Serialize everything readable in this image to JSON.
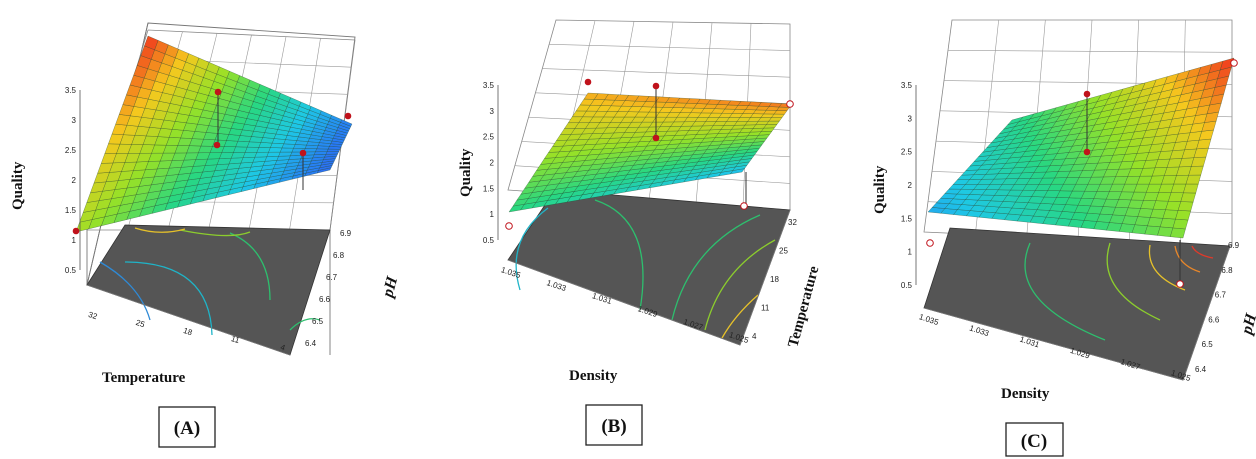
{
  "chart_data": [
    {
      "type": "surface3d",
      "panel_label": "(A)",
      "zlabel": "Quality",
      "xlabel": "Temperature",
      "ylabel": "pH",
      "zticks": [
        "0.5",
        "1",
        "1.5",
        "2",
        "2.5",
        "3",
        "3.5"
      ],
      "zlim": [
        0.5,
        3.5
      ],
      "xticks": [
        "32",
        "25",
        "18",
        "11",
        "4"
      ],
      "yticks": [
        "6.4",
        "6.5",
        "6.6",
        "6.7",
        "6.8",
        "6.9"
      ],
      "surface_corners": {
        "low_x_low_y": 2.6,
        "high_x_low_y": 0.9,
        "low_x_high_y": 3.5,
        "high_x_high_y": 1.0
      },
      "contours": [
        "#2f8ad6",
        "#1fb4c8",
        "#2dbf6e",
        "#8ccd2d",
        "#e6c12a"
      ],
      "design_points": [
        {
          "x": 4,
          "y": 6.9,
          "z": 3.0,
          "above_surface": true
        },
        {
          "x": 18,
          "y": 6.65,
          "z": 3.0,
          "above_surface": true
        },
        {
          "x": 18,
          "y": 6.65,
          "z": 2.0,
          "above_surface": false
        },
        {
          "x": 4,
          "y": 6.6,
          "z": 2.0,
          "above_surface": false
        },
        {
          "x": 32,
          "y": 6.4,
          "z": 1.0,
          "above_surface": false
        }
      ]
    },
    {
      "type": "surface3d",
      "panel_label": "(B)",
      "zlabel": "Quality",
      "xlabel": "Density",
      "ylabel": "Temperature",
      "zticks": [
        "0.5",
        "1",
        "1.5",
        "2",
        "2.5",
        "3",
        "3.5"
      ],
      "zlim": [
        0.5,
        3.5
      ],
      "xticks": [
        "1.035",
        "1.033",
        "1.031",
        "1.029",
        "1.027",
        "1.025"
      ],
      "yticks": [
        "4",
        "11",
        "18",
        "25",
        "32"
      ],
      "surface_corners": {
        "low_x_low_y": 2.0,
        "high_x_low_y": 1.4,
        "low_x_high_y": 3.1,
        "high_x_high_y": 3.3
      },
      "contours": [
        "#1fb4c8",
        "#2dbf6e",
        "#8ccd2d",
        "#e6c12a"
      ],
      "design_points": [
        {
          "x": 1.035,
          "y": 32,
          "z": 3.0,
          "above_surface": true
        },
        {
          "x": 1.029,
          "y": 18,
          "z": 3.0,
          "above_surface": true
        },
        {
          "x": 1.029,
          "y": 18,
          "z": 2.0,
          "above_surface": false
        },
        {
          "x": 1.025,
          "y": 32,
          "z": 3.0,
          "above_surface": false
        },
        {
          "x": 1.025,
          "y": 4,
          "z": 1.0,
          "above_surface": false
        },
        {
          "x": 1.035,
          "y": 4,
          "z": 1.0,
          "above_surface": false
        }
      ]
    },
    {
      "type": "surface3d",
      "panel_label": "(C)",
      "zlabel": "Quality",
      "xlabel": "Density",
      "ylabel": "pH",
      "zticks": [
        "0.5",
        "1",
        "1.5",
        "2",
        "2.5",
        "3",
        "3.5"
      ],
      "zlim": [
        0.5,
        3.5
      ],
      "xticks": [
        "1.035",
        "1.033",
        "1.031",
        "1.029",
        "1.027",
        "1.025"
      ],
      "yticks": [
        "6.4",
        "6.5",
        "6.6",
        "6.7",
        "6.8",
        "6.9"
      ],
      "surface_corners": {
        "low_x_low_y": 1.3,
        "high_x_low_y": 2.4,
        "low_x_high_y": 1.9,
        "high_x_high_y": 3.5
      },
      "contours": [
        "#2dbf6e",
        "#8ccd2d",
        "#e6c12a",
        "#e8872a",
        "#e03a2a"
      ],
      "design_points": [
        {
          "x": 1.029,
          "y": 6.9,
          "z": 3.0,
          "above_surface": true
        },
        {
          "x": 1.029,
          "y": 6.9,
          "z": 2.0,
          "above_surface": false
        },
        {
          "x": 1.025,
          "y": 6.9,
          "z": 3.5,
          "above_surface": false
        },
        {
          "x": 1.025,
          "y": 6.7,
          "z": 1.0,
          "above_surface": false
        },
        {
          "x": 1.035,
          "y": 6.4,
          "z": 1.0,
          "above_surface": false
        }
      ]
    }
  ]
}
